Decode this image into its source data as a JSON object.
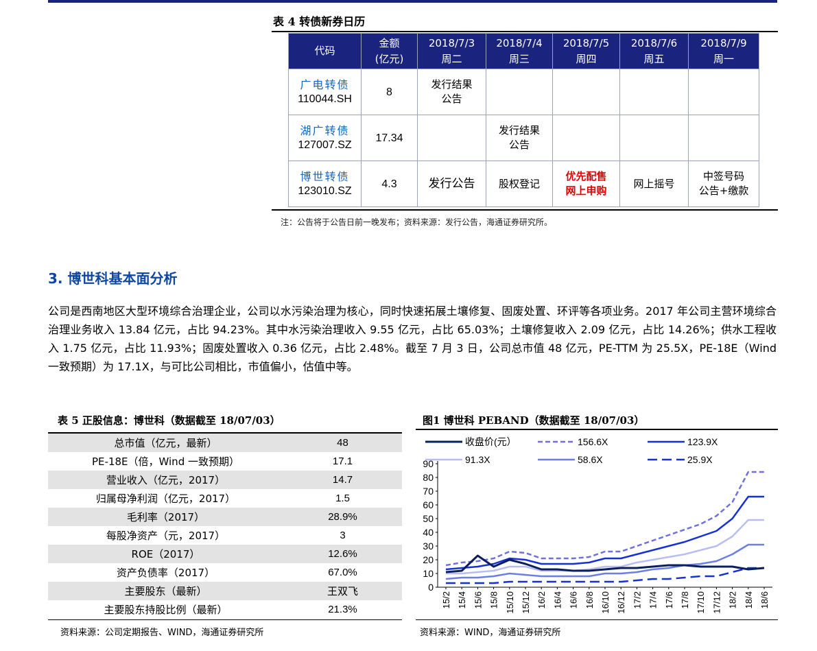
{
  "table4": {
    "title": "表 4 转债新券日历",
    "headers": [
      {
        "l1": "代码",
        "l2": ""
      },
      {
        "l1": "金额",
        "l2": "(亿元)"
      },
      {
        "l1": "2018/7/3",
        "l2": "周二"
      },
      {
        "l1": "2018/7/4",
        "l2": "周三"
      },
      {
        "l1": "2018/7/5",
        "l2": "周四"
      },
      {
        "l1": "2018/7/6",
        "l2": "周五"
      },
      {
        "l1": "2018/7/9",
        "l2": "周一"
      }
    ],
    "rows": [
      {
        "name": "广电转债",
        "code": "110044.SH",
        "amount": "8",
        "c1": "发行结果",
        "c1b": "公告",
        "c2": "",
        "c2b": "",
        "c3": "",
        "c3b": "",
        "c4": "",
        "c5": "",
        "c5b": ""
      },
      {
        "name": "湖广转债",
        "code": "127007.SZ",
        "amount": "17.34",
        "c1": "",
        "c1b": "",
        "c2": "发行结果",
        "c2b": "公告",
        "c3": "",
        "c3b": "",
        "c4": "",
        "c5": "",
        "c5b": ""
      },
      {
        "name": "博世转债",
        "code": "123010.SZ",
        "amount": "4.3",
        "c1": "发行公告",
        "c1b": "",
        "c2": "股权登记",
        "c2b": "",
        "c3": "优先配售",
        "c3b": "网上申购",
        "c4": "网上摇号",
        "c5": "中签号码",
        "c5b": "公告+缴款"
      }
    ],
    "note": "注：公告将于公告日前一晚发布；资料来源：发行公告，海通证券研究所。"
  },
  "section": {
    "title": "3. 博世科基本面分析",
    "body": "公司是西南地区大型环境综合治理企业，公司以水污染治理为核心，同时快速拓展土壤修复、固废处置、环评等各项业务。2017 年公司主营环境综合治理业务收入 13.84 亿元，占比 94.23%。其中水污染治理收入 9.55 亿元，占比 65.03%；土壤修复收入 2.09 亿元，占比 14.26%；供水工程收入 1.75 亿元，占比 11.93%；固废处置收入 0.36 亿元，占比 2.48%。截至 7 月 3 日，公司总市值 48 亿元，PE-TTM 为 25.5X，PE-18E（Wind 一致预期）为 17.1X，与可比公司相比，市值偏小，估值中等。"
  },
  "table5": {
    "title": "表 5 正股信息：博世科（数据截至 18/07/03）",
    "rows": [
      {
        "label": "总市值（亿元，最新）",
        "value": "48"
      },
      {
        "label": "PE-18E（倍，Wind 一致预期）",
        "value": "17.1"
      },
      {
        "label": "营业收入（亿元，2017）",
        "value": "14.7"
      },
      {
        "label": "归属母净利润（亿元，2017）",
        "value": "1.5"
      },
      {
        "label": "毛利率（2017）",
        "value": "28.9%"
      },
      {
        "label": "每股净资产（元，2017）",
        "value": "3"
      },
      {
        "label": "ROE（2017）",
        "value": "12.6%"
      },
      {
        "label": "资产负债率（2017）",
        "value": "67.0%"
      },
      {
        "label": "主要股东（最新）",
        "value": "王双飞"
      },
      {
        "label": "主要股东持股比例（最新）",
        "value": "21.3%"
      }
    ],
    "source": "资料来源：公司定期报告、WIND，海通证券研究所"
  },
  "figure1": {
    "title": "图1 博世科 PEBAND（数据截至 18/07/03）",
    "source": "资料来源：WIND，海通证券研究所"
  },
  "chart_data": {
    "type": "line",
    "title": "图1 博世科 PEBAND（数据截至 18/07/03）",
    "xlabel": "",
    "ylabel": "",
    "ylim": [
      0,
      90
    ],
    "yticks": [
      "0",
      "10",
      "20",
      "30",
      "40",
      "50",
      "60",
      "70",
      "80",
      "90"
    ],
    "categories": [
      "15/2",
      "15/4",
      "15/6",
      "15/8",
      "15/10",
      "15/12",
      "16/2",
      "16/4",
      "16/6",
      "16/8",
      "16/10",
      "16/12",
      "17/2",
      "17/4",
      "17/6",
      "17/8",
      "17/10",
      "17/12",
      "18/2",
      "18/4",
      "18/6"
    ],
    "legend": "top",
    "colors": {
      "price": "#0b1f5c",
      "pe156": "#6f6fe0",
      "pe123": "#1530d8",
      "pe91": "#b9bdf2",
      "pe58": "#6b7ee6",
      "pe25": "#1530d8"
    },
    "series": [
      {
        "key": "price",
        "name": "收盘价(元）",
        "style": "solid",
        "width": 3,
        "values": [
          11,
          12,
          23,
          15,
          20,
          17,
          13,
          13,
          12,
          12,
          13,
          14,
          14,
          15,
          16,
          16,
          15,
          15,
          15,
          13,
          14
        ]
      },
      {
        "key": "pe156",
        "name": "156.6X",
        "style": "dashed",
        "width": 2.5,
        "values": [
          16,
          18,
          19,
          21,
          26,
          25,
          21,
          21,
          21,
          22,
          26,
          26,
          30,
          34,
          38,
          42,
          46,
          52,
          62,
          84,
          84
        ]
      },
      {
        "key": "pe123",
        "name": "123.9X",
        "style": "solid",
        "width": 2.5,
        "values": [
          13,
          14,
          15,
          17,
          21,
          20,
          17,
          17,
          17,
          18,
          21,
          21,
          24,
          27,
          30,
          33,
          37,
          41,
          50,
          66,
          66
        ]
      },
      {
        "key": "pe91",
        "name": "91.3X",
        "style": "solid",
        "width": 2.5,
        "values": [
          10,
          10,
          11,
          12,
          15,
          15,
          12,
          12,
          12,
          13,
          15,
          15,
          18,
          20,
          22,
          24,
          27,
          30,
          37,
          49,
          49
        ]
      },
      {
        "key": "pe58",
        "name": "58.6X",
        "style": "solid",
        "width": 2.5,
        "values": [
          6,
          7,
          7,
          8,
          10,
          9,
          8,
          8,
          8,
          8,
          10,
          10,
          11,
          13,
          14,
          16,
          17,
          19,
          24,
          31,
          31
        ]
      },
      {
        "key": "pe25",
        "name": "25.9X",
        "style": "dashed",
        "width": 2.5,
        "values": [
          3,
          3,
          3,
          3,
          4,
          4,
          4,
          4,
          4,
          4,
          4,
          4,
          5,
          6,
          6,
          7,
          8,
          8,
          11,
          14,
          14
        ]
      }
    ]
  }
}
